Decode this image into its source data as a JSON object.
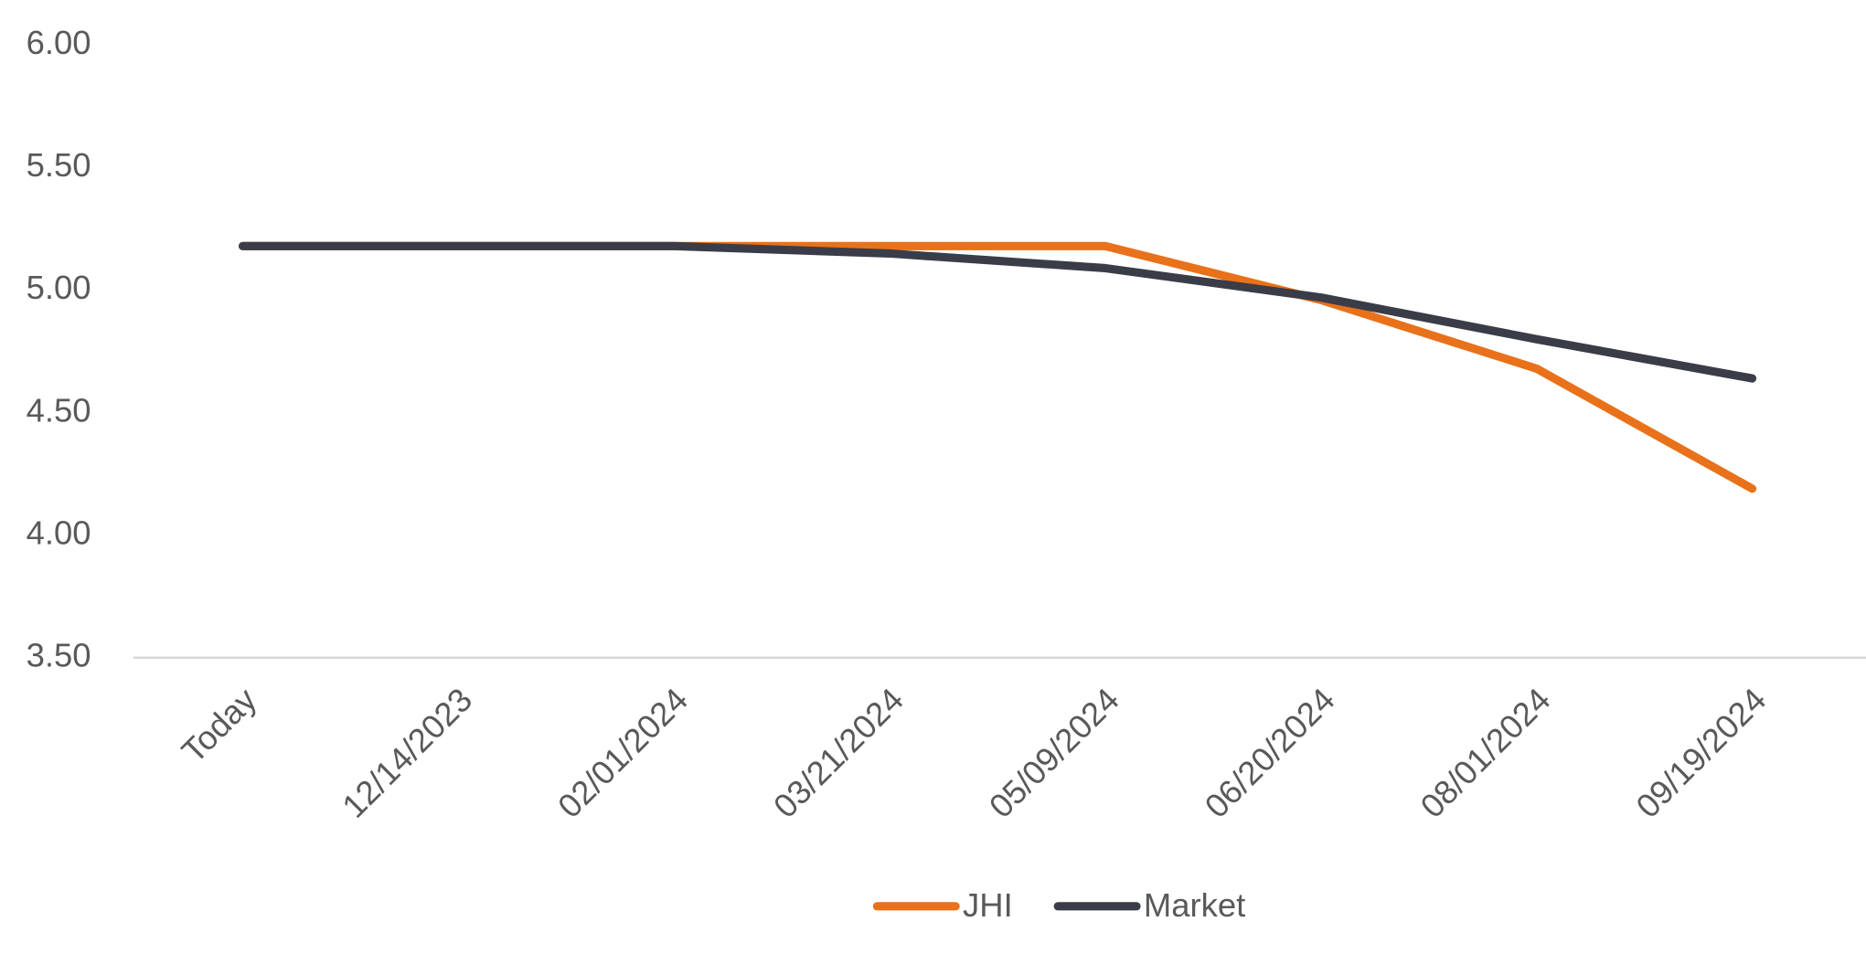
{
  "chart_data": {
    "type": "line",
    "categories": [
      "Today",
      "12/14/2023",
      "02/01/2024",
      "03/21/2024",
      "05/09/2024",
      "06/20/2024",
      "08/01/2024",
      "09/19/2024"
    ],
    "series": [
      {
        "name": "JHI",
        "color": "#e8711a",
        "values": [
          5.18,
          5.18,
          5.18,
          5.18,
          5.18,
          4.96,
          4.68,
          4.19
        ]
      },
      {
        "name": "Market",
        "color": "#3a3d47",
        "values": [
          5.18,
          5.18,
          5.18,
          5.15,
          5.09,
          4.97,
          4.8,
          4.64
        ]
      }
    ],
    "ylim": [
      3.5,
      6.0
    ],
    "yticks": [
      {
        "value": 3.5,
        "label": "3.50"
      },
      {
        "value": 4,
        "label": "4.00"
      },
      {
        "value": 4.5,
        "label": "4.50"
      },
      {
        "value": 5,
        "label": "5.00"
      },
      {
        "value": 5.5,
        "label": "5.50"
      },
      {
        "value": 6,
        "label": "6.00"
      }
    ],
    "grid": false,
    "legend": "bottom"
  }
}
